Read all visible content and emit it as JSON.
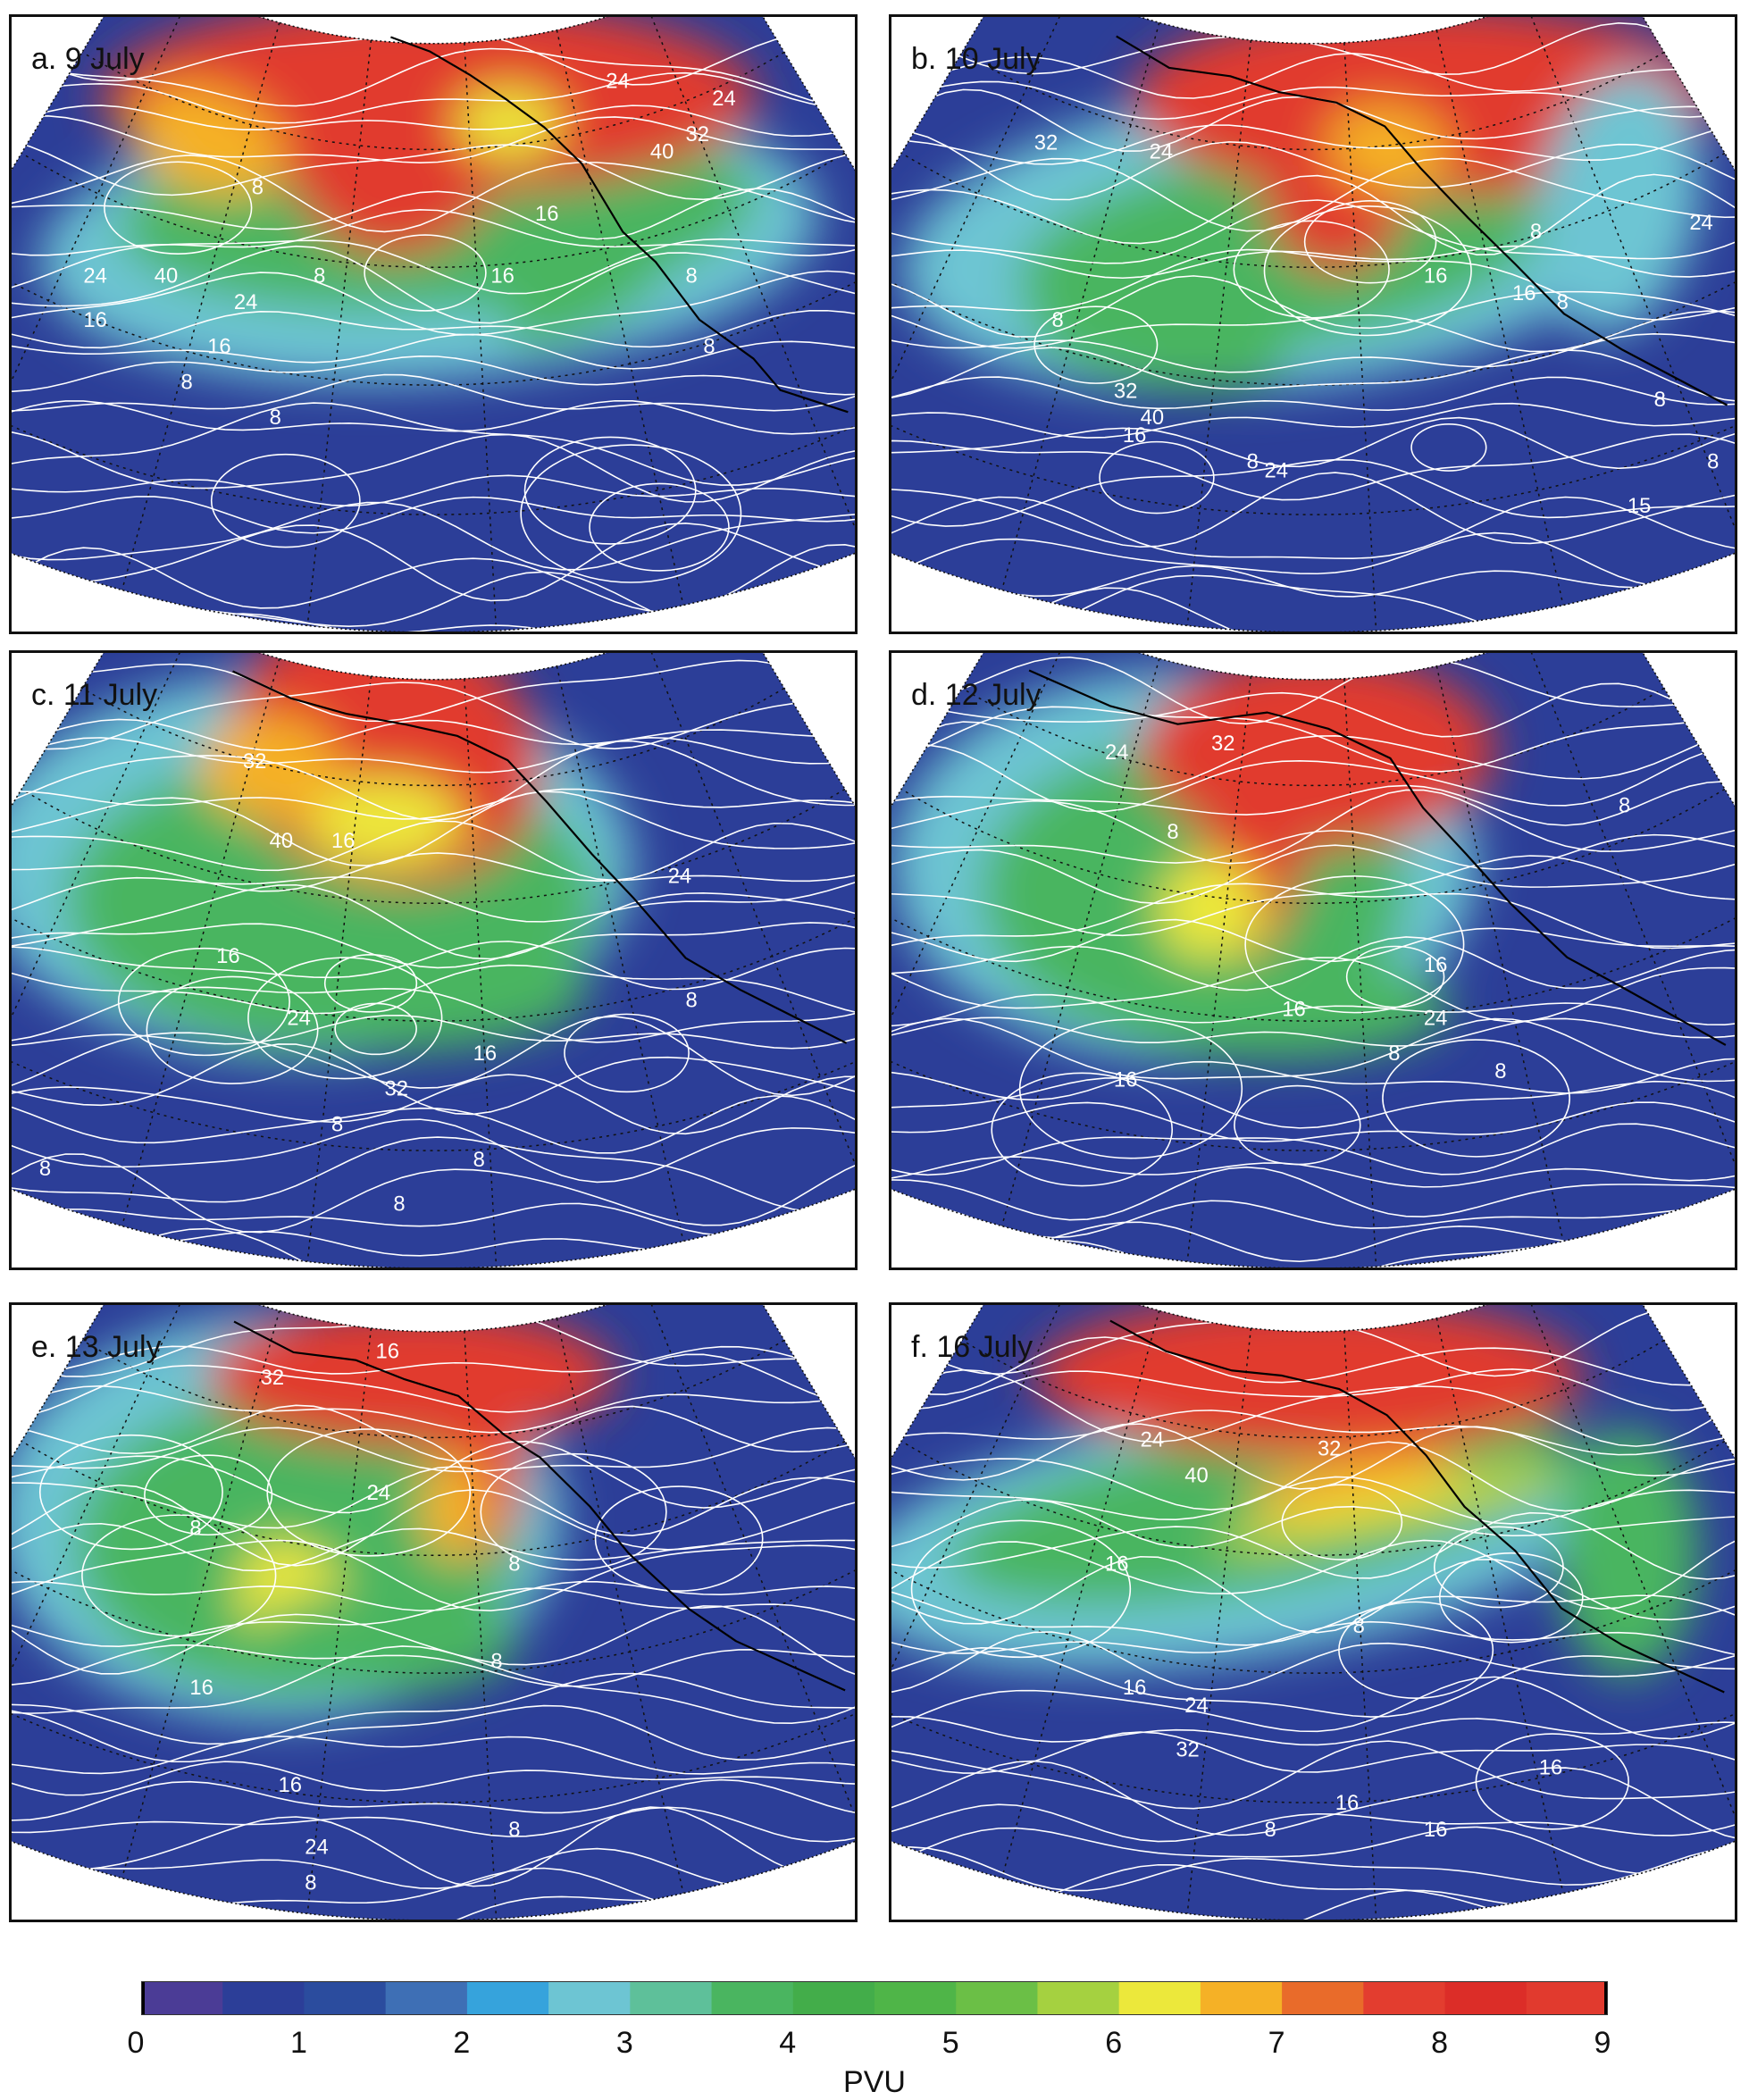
{
  "panels": [
    {
      "id": "a",
      "label": "a. 9 July",
      "contour_labels": [
        "24",
        "32",
        "16",
        "8",
        "24",
        "40",
        "24",
        "16",
        "8",
        "16",
        "8",
        "40",
        "24",
        "16",
        "8",
        "8",
        "8"
      ]
    },
    {
      "id": "b",
      "label": "b. 10 July",
      "contour_labels": [
        "32",
        "24",
        "16",
        "8",
        "24",
        "8",
        "32",
        "40",
        "16",
        "24",
        "16",
        "8",
        "8",
        "8",
        "15",
        "8"
      ]
    },
    {
      "id": "c",
      "label": "c. 11 July",
      "contour_labels": [
        "32",
        "40",
        "16",
        "24",
        "8",
        "16",
        "24",
        "32",
        "16",
        "8",
        "8",
        "8",
        "8"
      ]
    },
    {
      "id": "d",
      "label": "d. 12 July",
      "contour_labels": [
        "24",
        "32",
        "16",
        "8",
        "24",
        "16",
        "8",
        "16",
        "8",
        "8"
      ]
    },
    {
      "id": "e",
      "label": "e. 13 July",
      "contour_labels": [
        "16",
        "32",
        "8",
        "24",
        "16",
        "8",
        "16",
        "24",
        "8",
        "8",
        "8"
      ]
    },
    {
      "id": "f",
      "label": "f. 16 July",
      "contour_labels": [
        "24",
        "40",
        "32",
        "16",
        "24",
        "16",
        "32",
        "16",
        "8",
        "16",
        "16",
        "8"
      ]
    }
  ],
  "colorbar": {
    "colors": [
      "#4b3c96",
      "#2c3e98",
      "#2b4c9e",
      "#3e6fb5",
      "#36a3dc",
      "#6dc5d3",
      "#5ec09a",
      "#4ab560",
      "#43ad4a",
      "#4fb548",
      "#6bbf46",
      "#a5d140",
      "#ece83b",
      "#f5b126",
      "#e96b2a",
      "#e33d2f",
      "#dc2d28",
      "#e13a2e"
    ],
    "ticks": [
      "0",
      "1",
      "2",
      "3",
      "4",
      "5",
      "6",
      "7",
      "8",
      "9"
    ],
    "unit": "PVU",
    "range": [
      0,
      9
    ]
  },
  "map_colors": {
    "low": "#2c3e98",
    "cyan": "#6dc5d3",
    "green": "#4ab560",
    "yellow": "#ece83b",
    "orange": "#f5b126",
    "high": "#e13a2e",
    "contour": "#ffffff",
    "coast": "#000000"
  }
}
